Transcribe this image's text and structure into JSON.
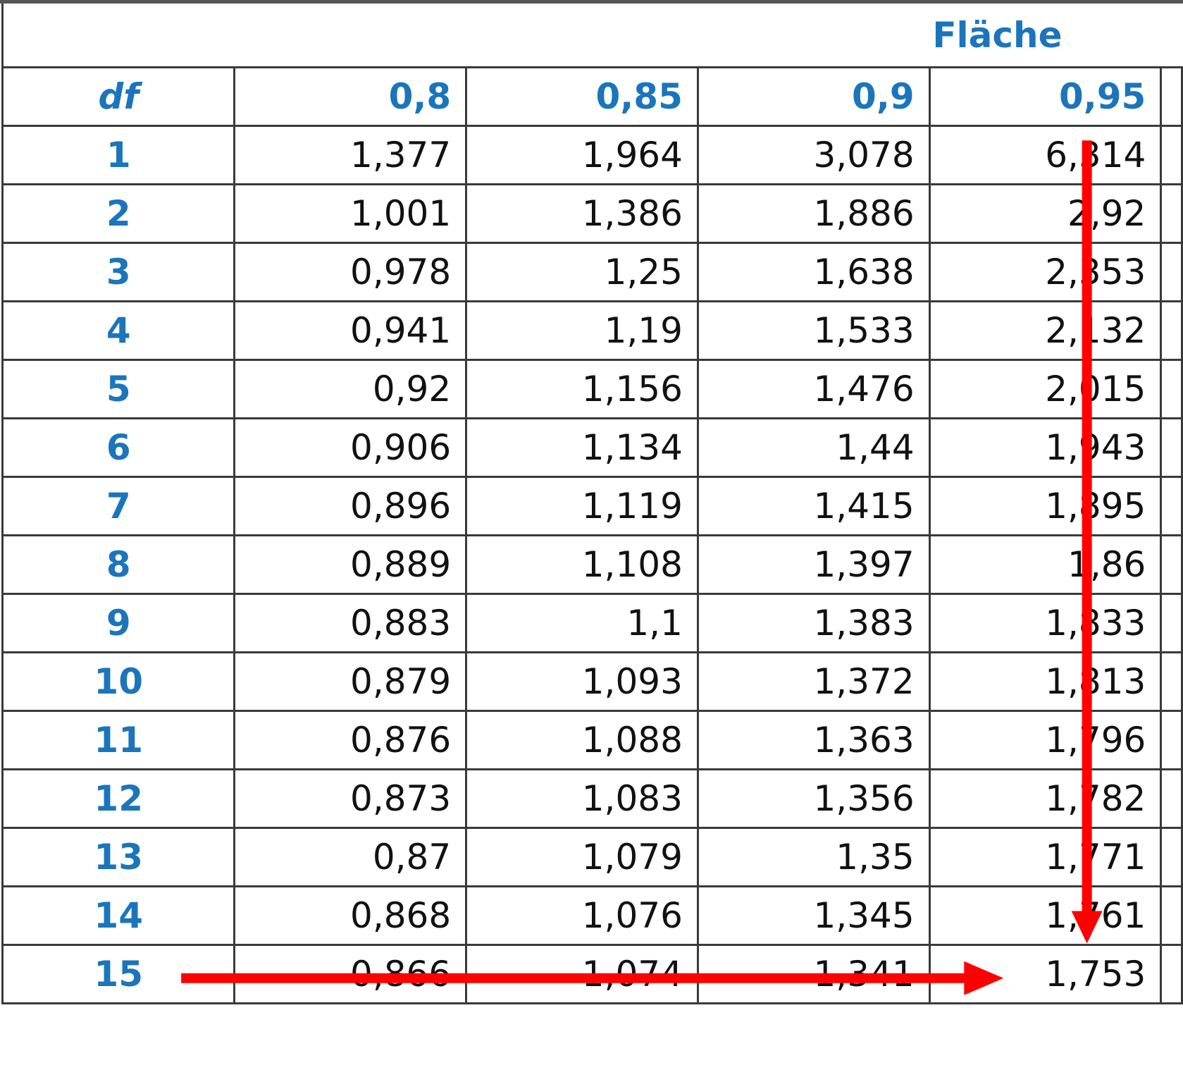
{
  "table": {
    "area_label": "Fläche",
    "df_label": "df",
    "columns": [
      "0,8",
      "0,85",
      "0,9",
      "0,95"
    ],
    "rows": [
      {
        "df": "1",
        "values": [
          "1,377",
          "1,964",
          "3,078",
          "6,314"
        ]
      },
      {
        "df": "2",
        "values": [
          "1,001",
          "1,386",
          "1,886",
          "2,92"
        ]
      },
      {
        "df": "3",
        "values": [
          "0,978",
          "1,25",
          "1,638",
          "2,353"
        ]
      },
      {
        "df": "4",
        "values": [
          "0,941",
          "1,19",
          "1,533",
          "2,132"
        ]
      },
      {
        "df": "5",
        "values": [
          "0,92",
          "1,156",
          "1,476",
          "2,015"
        ]
      },
      {
        "df": "6",
        "values": [
          "0,906",
          "1,134",
          "1,44",
          "1,943"
        ]
      },
      {
        "df": "7",
        "values": [
          "0,896",
          "1,119",
          "1,415",
          "1,895"
        ]
      },
      {
        "df": "8",
        "values": [
          "0,889",
          "1,108",
          "1,397",
          "1,86"
        ]
      },
      {
        "df": "9",
        "values": [
          "0,883",
          "1,1",
          "1,383",
          "1,833"
        ]
      },
      {
        "df": "10",
        "values": [
          "0,879",
          "1,093",
          "1,372",
          "1,813"
        ]
      },
      {
        "df": "11",
        "values": [
          "0,876",
          "1,088",
          "1,363",
          "1,796"
        ]
      },
      {
        "df": "12",
        "values": [
          "0,873",
          "1,083",
          "1,356",
          "1,782"
        ]
      },
      {
        "df": "13",
        "values": [
          "0,87",
          "1,079",
          "1,35",
          "1,771"
        ]
      },
      {
        "df": "14",
        "values": [
          "0,868",
          "1,076",
          "1,345",
          "1,761"
        ]
      },
      {
        "df": "15",
        "values": [
          "0,866",
          "1,074",
          "1,341",
          "1,753"
        ]
      }
    ]
  },
  "highlight": {
    "row_df": "15",
    "column": "0,95",
    "color": "#ff0000"
  },
  "colors": {
    "header_blue": "#1b75bb",
    "grid": "#3a3a3a",
    "text": "#111111"
  }
}
